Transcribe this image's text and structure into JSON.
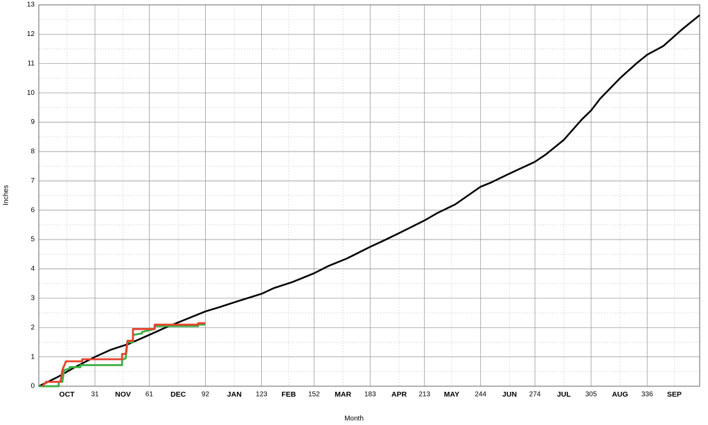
{
  "chart_data": {
    "type": "line",
    "xlabel": "Month",
    "ylabel": "Inches",
    "xlim": [
      0,
      365
    ],
    "ylim": [
      0,
      13
    ],
    "xticks": [
      31,
      61,
      92,
      123,
      152,
      183,
      213,
      244,
      274,
      305,
      336
    ],
    "yticks": [
      0,
      1,
      2,
      3,
      4,
      5,
      6,
      7,
      8,
      9,
      10,
      11,
      12,
      13
    ],
    "month_ticks": [
      {
        "value": 15.5,
        "label": "OCT"
      },
      {
        "value": 46.5,
        "label": "NOV"
      },
      {
        "value": 77,
        "label": "DEC"
      },
      {
        "value": 108,
        "label": "JAN"
      },
      {
        "value": 138,
        "label": "FEB"
      },
      {
        "value": 168,
        "label": "MAR"
      },
      {
        "value": 199,
        "label": "APR"
      },
      {
        "value": 228,
        "label": "MAY"
      },
      {
        "value": 260,
        "label": "JUN"
      },
      {
        "value": 290,
        "label": "JUL"
      },
      {
        "value": 321,
        "label": "AUG"
      },
      {
        "value": 351,
        "label": "SEP"
      }
    ],
    "grid": true,
    "series": [
      {
        "color": "#000000",
        "x": [
          0,
          10,
          20,
          31,
          40,
          50,
          61,
          70,
          80,
          92,
          100,
          110,
          123,
          130,
          140,
          152,
          160,
          170,
          183,
          190,
          200,
          213,
          220,
          230,
          244,
          250,
          260,
          274,
          280,
          290,
          300,
          305,
          310,
          321,
          330,
          336,
          345,
          355,
          365
        ],
        "values": [
          0,
          0.3,
          0.65,
          1.0,
          1.25,
          1.45,
          1.75,
          2.0,
          2.25,
          2.55,
          2.7,
          2.9,
          3.15,
          3.35,
          3.55,
          3.85,
          4.1,
          4.35,
          4.75,
          4.95,
          5.25,
          5.65,
          5.9,
          6.2,
          6.8,
          6.95,
          7.25,
          7.65,
          7.9,
          8.4,
          9.1,
          9.4,
          9.8,
          10.5,
          11.0,
          11.3,
          11.6,
          12.15,
          12.65
        ]
      },
      {
        "color": "#3cb043",
        "x": [
          0,
          11,
          11,
          13,
          14,
          17,
          17,
          23,
          23,
          46,
          46,
          48,
          49,
          52,
          52,
          57,
          57,
          64,
          64,
          88,
          88,
          92
        ],
        "values": [
          0,
          0,
          0.15,
          0.15,
          0.55,
          0.6,
          0.65,
          0.65,
          0.72,
          0.72,
          0.9,
          0.95,
          1.5,
          1.5,
          1.75,
          1.8,
          1.85,
          1.95,
          2.05,
          2.05,
          2.1,
          2.1
        ]
      },
      {
        "color": "#e8412c",
        "x": [
          2,
          4,
          12,
          13,
          15,
          24,
          24,
          46,
          46,
          48,
          49,
          52,
          52,
          64,
          64,
          88,
          88,
          92
        ],
        "values": [
          0,
          0.15,
          0.15,
          0.55,
          0.85,
          0.85,
          0.92,
          0.92,
          1.1,
          1.1,
          1.55,
          1.55,
          1.95,
          1.95,
          2.1,
          2.1,
          2.15,
          2.15
        ]
      }
    ]
  }
}
